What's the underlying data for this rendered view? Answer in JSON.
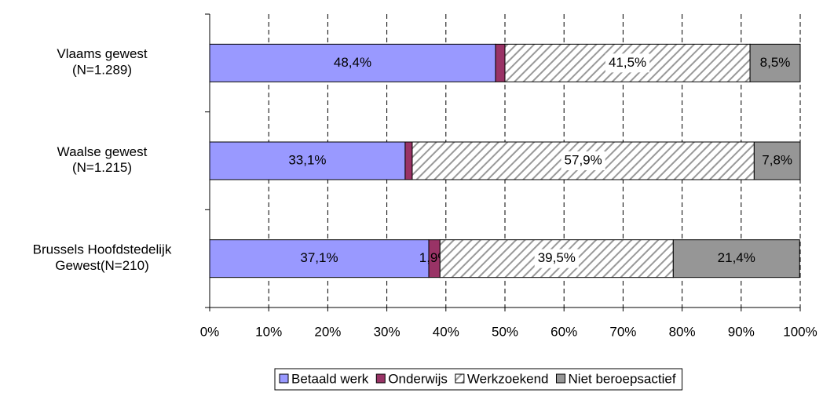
{
  "chart_data": {
    "type": "stacked-bar-horizontal",
    "categories": [
      "Vlaams gewest\n(N=1.289)",
      "Waalse gewest\n(N=1.215)",
      "Brussels Hoofdstedelijk\nGewest(N=210)"
    ],
    "series": [
      {
        "name": "Betaald werk",
        "color": "#9999ff",
        "values": [
          48.4,
          33.1,
          37.1
        ],
        "value_labels": [
          "48,4%",
          "33,1%",
          "37,1%"
        ]
      },
      {
        "name": "Onderwijs",
        "color": "#993366",
        "values": [
          1.6,
          1.2,
          1.9
        ],
        "value_labels": [
          null,
          null,
          "1,9%"
        ]
      },
      {
        "name": "Werkzoekend",
        "color": "#ffffff",
        "pattern": "hatch",
        "values": [
          41.5,
          57.9,
          39.5
        ],
        "value_labels": [
          "41,5%",
          "57,9%",
          "39,5%"
        ]
      },
      {
        "name": "Niet beroepsactief",
        "color": "#969696",
        "values": [
          8.5,
          7.8,
          21.4
        ],
        "value_labels": [
          "8,5%",
          "7,8%",
          "21,4%"
        ]
      }
    ],
    "xlim": [
      0,
      100
    ],
    "xticks": [
      {
        "value": 0,
        "label": "0%"
      },
      {
        "value": 10,
        "label": "10%"
      },
      {
        "value": 20,
        "label": "20%"
      },
      {
        "value": 30,
        "label": "30%"
      },
      {
        "value": 40,
        "label": "40%"
      },
      {
        "value": 50,
        "label": "50%"
      },
      {
        "value": 60,
        "label": "60%"
      },
      {
        "value": 70,
        "label": "70%"
      },
      {
        "value": 80,
        "label": "80%"
      },
      {
        "value": 90,
        "label": "90%"
      },
      {
        "value": 100,
        "label": "100%"
      }
    ],
    "grid": true,
    "legend": "bottom"
  }
}
